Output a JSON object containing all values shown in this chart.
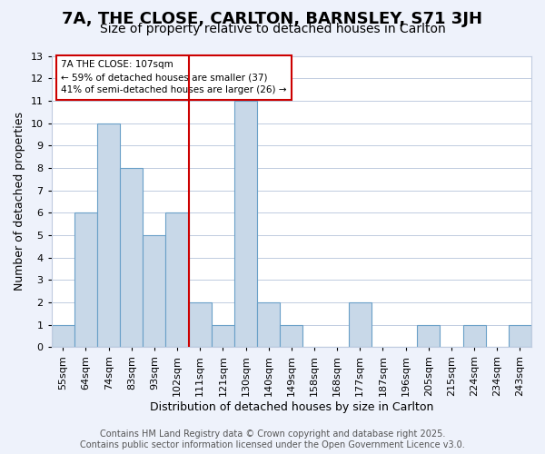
{
  "title": "7A, THE CLOSE, CARLTON, BARNSLEY, S71 3JH",
  "subtitle": "Size of property relative to detached houses in Carlton",
  "xlabel": "Distribution of detached houses by size in Carlton",
  "ylabel": "Number of detached properties",
  "bin_labels": [
    "55sqm",
    "64sqm",
    "74sqm",
    "83sqm",
    "93sqm",
    "102sqm",
    "111sqm",
    "121sqm",
    "130sqm",
    "140sqm",
    "149sqm",
    "158sqm",
    "168sqm",
    "177sqm",
    "187sqm",
    "196sqm",
    "205sqm",
    "215sqm",
    "224sqm",
    "234sqm",
    "243sqm"
  ],
  "counts": [
    1,
    6,
    10,
    8,
    5,
    6,
    2,
    1,
    11,
    2,
    1,
    0,
    0,
    2,
    0,
    0,
    1,
    0,
    1,
    0,
    1
  ],
  "ylim": [
    0,
    13
  ],
  "yticks": [
    0,
    1,
    2,
    3,
    4,
    5,
    6,
    7,
    8,
    9,
    10,
    11,
    12,
    13
  ],
  "bar_color": "#c8d8e8",
  "bar_edge_color": "#6aa0c8",
  "vline_x": 5.5,
  "vline_color": "#cc0000",
  "annotation_title": "7A THE CLOSE: 107sqm",
  "annotation_line1": "← 59% of detached houses are smaller (37)",
  "annotation_line2": "41% of semi-detached houses are larger (26) →",
  "footer1": "Contains HM Land Registry data © Crown copyright and database right 2025.",
  "footer2": "Contains public sector information licensed under the Open Government Licence v3.0.",
  "background_color": "#eef2fb",
  "plot_background": "#ffffff",
  "grid_color": "#c0cce0",
  "title_fontsize": 13,
  "subtitle_fontsize": 10,
  "axis_label_fontsize": 9,
  "tick_fontsize": 8,
  "footer_fontsize": 7
}
